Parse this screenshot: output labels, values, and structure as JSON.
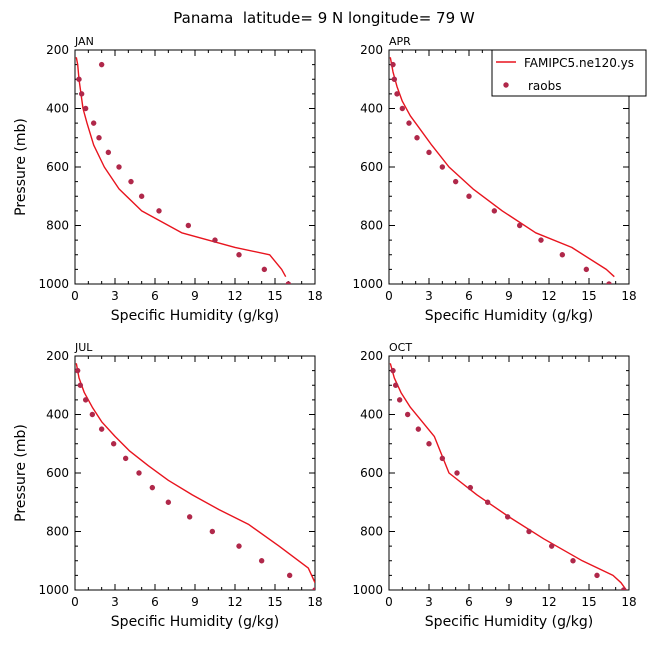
{
  "figure_title": "Panama  latitude= 9 N longitude= 79 W",
  "legend": {
    "model_label": "FAMIPC5.ne120.ys",
    "obs_label": "raobs"
  },
  "colors": {
    "model_line": "#e8141e",
    "obs_marker": "#b0284a",
    "axis": "#000000",
    "background": "#ffffff"
  },
  "chart_data": [
    {
      "type": "line",
      "panel_label": "JAN",
      "xlabel": "Specific Humidity (g/kg)",
      "ylabel": "Pressure (mb)",
      "xlim": [
        0,
        18
      ],
      "ylim": [
        1000,
        200
      ],
      "y_inverted": true,
      "xticks": [
        0,
        3,
        6,
        9,
        12,
        15,
        18
      ],
      "yticks": [
        200,
        400,
        600,
        800,
        1000
      ],
      "series": [
        {
          "name": "FAMIPC5.ne120.ys",
          "kind": "line",
          "x": [
            0.1,
            0.2,
            0.3,
            0.45,
            0.6,
            0.9,
            1.4,
            2.2,
            3.3,
            5.0,
            8.0,
            12.0,
            14.6,
            15.5,
            15.8
          ],
          "y": [
            225,
            250,
            300,
            350,
            400,
            450,
            525,
            600,
            675,
            750,
            825,
            875,
            900,
            950,
            975
          ]
        },
        {
          "name": "raobs",
          "kind": "scatter",
          "x": [
            2.0,
            0.3,
            0.5,
            0.8,
            1.4,
            1.8,
            2.5,
            3.3,
            4.2,
            5.0,
            6.3,
            8.5,
            10.5,
            12.3,
            14.2,
            16.0
          ],
          "y": [
            250,
            300,
            350,
            400,
            450,
            500,
            550,
            600,
            650,
            700,
            750,
            800,
            850,
            900,
            950,
            1000
          ]
        }
      ]
    },
    {
      "type": "line",
      "panel_label": "APR",
      "xlabel": "Specific Humidity (g/kg)",
      "ylabel": "",
      "xlim": [
        0,
        18
      ],
      "ylim": [
        1000,
        200
      ],
      "y_inverted": true,
      "xticks": [
        0,
        3,
        6,
        9,
        12,
        15,
        18
      ],
      "yticks": [
        200,
        400,
        600,
        800,
        1000
      ],
      "series": [
        {
          "name": "FAMIPC5.ne120.ys",
          "kind": "line",
          "x": [
            0.1,
            0.3,
            0.6,
            1.0,
            1.6,
            2.4,
            3.2,
            4.5,
            6.3,
            8.5,
            11.0,
            13.7,
            16.3,
            16.9
          ],
          "y": [
            225,
            275,
            325,
            375,
            425,
            475,
            525,
            600,
            675,
            750,
            825,
            875,
            950,
            975
          ]
        },
        {
          "name": "raobs",
          "kind": "scatter",
          "x": [
            0.3,
            0.4,
            0.6,
            1.0,
            1.5,
            2.1,
            3.0,
            4.0,
            5.0,
            6.0,
            7.9,
            9.8,
            11.4,
            13.0,
            14.8,
            16.5
          ],
          "y": [
            250,
            300,
            350,
            400,
            450,
            500,
            550,
            600,
            650,
            700,
            750,
            800,
            850,
            900,
            950,
            1000
          ]
        }
      ]
    },
    {
      "type": "line",
      "panel_label": "JUL",
      "xlabel": "Specific Humidity (g/kg)",
      "ylabel": "Pressure (mb)",
      "xlim": [
        0,
        18
      ],
      "ylim": [
        1000,
        200
      ],
      "y_inverted": true,
      "xticks": [
        0,
        3,
        6,
        9,
        12,
        15,
        18
      ],
      "yticks": [
        200,
        400,
        600,
        800,
        1000
      ],
      "series": [
        {
          "name": "FAMIPC5.ne120.ys",
          "kind": "line",
          "x": [
            0.1,
            0.3,
            0.7,
            1.3,
            2.0,
            3.0,
            4.1,
            5.5,
            7.0,
            8.8,
            10.8,
            13.0,
            15.3,
            17.5,
            18.0
          ],
          "y": [
            225,
            275,
            325,
            375,
            425,
            475,
            525,
            575,
            625,
            675,
            725,
            775,
            850,
            925,
            975
          ]
        },
        {
          "name": "raobs",
          "kind": "scatter",
          "x": [
            0.2,
            0.4,
            0.8,
            1.3,
            2.0,
            2.9,
            3.8,
            4.8,
            5.8,
            7.0,
            8.6,
            10.3,
            12.3,
            14.0,
            16.1,
            18.0
          ],
          "y": [
            250,
            300,
            350,
            400,
            450,
            500,
            550,
            600,
            650,
            700,
            750,
            800,
            850,
            900,
            950,
            1000
          ]
        }
      ]
    },
    {
      "type": "line",
      "panel_label": "OCT",
      "xlabel": "Specific Humidity (g/kg)",
      "ylabel": "",
      "xlim": [
        0,
        18
      ],
      "ylim": [
        1000,
        200
      ],
      "y_inverted": true,
      "xticks": [
        0,
        3,
        6,
        9,
        12,
        15,
        18
      ],
      "yticks": [
        200,
        400,
        600,
        800,
        1000
      ],
      "series": [
        {
          "name": "FAMIPC5.ne120.ys",
          "kind": "line",
          "x": [
            0.1,
            0.4,
            0.9,
            1.6,
            2.5,
            3.4,
            4.5,
            6.6,
            9.0,
            11.6,
            14.5,
            16.8,
            17.4,
            17.8
          ],
          "y": [
            225,
            275,
            325,
            375,
            425,
            475,
            600,
            675,
            750,
            825,
            900,
            950,
            975,
            1000
          ]
        },
        {
          "name": "raobs",
          "kind": "scatter",
          "x": [
            0.3,
            0.5,
            0.8,
            1.4,
            2.2,
            3.0,
            4.0,
            5.1,
            6.1,
            7.4,
            8.9,
            10.5,
            12.2,
            13.8,
            15.6,
            17.6
          ],
          "y": [
            250,
            300,
            350,
            400,
            450,
            500,
            550,
            600,
            650,
            700,
            750,
            800,
            850,
            900,
            950,
            1000
          ]
        }
      ]
    }
  ]
}
